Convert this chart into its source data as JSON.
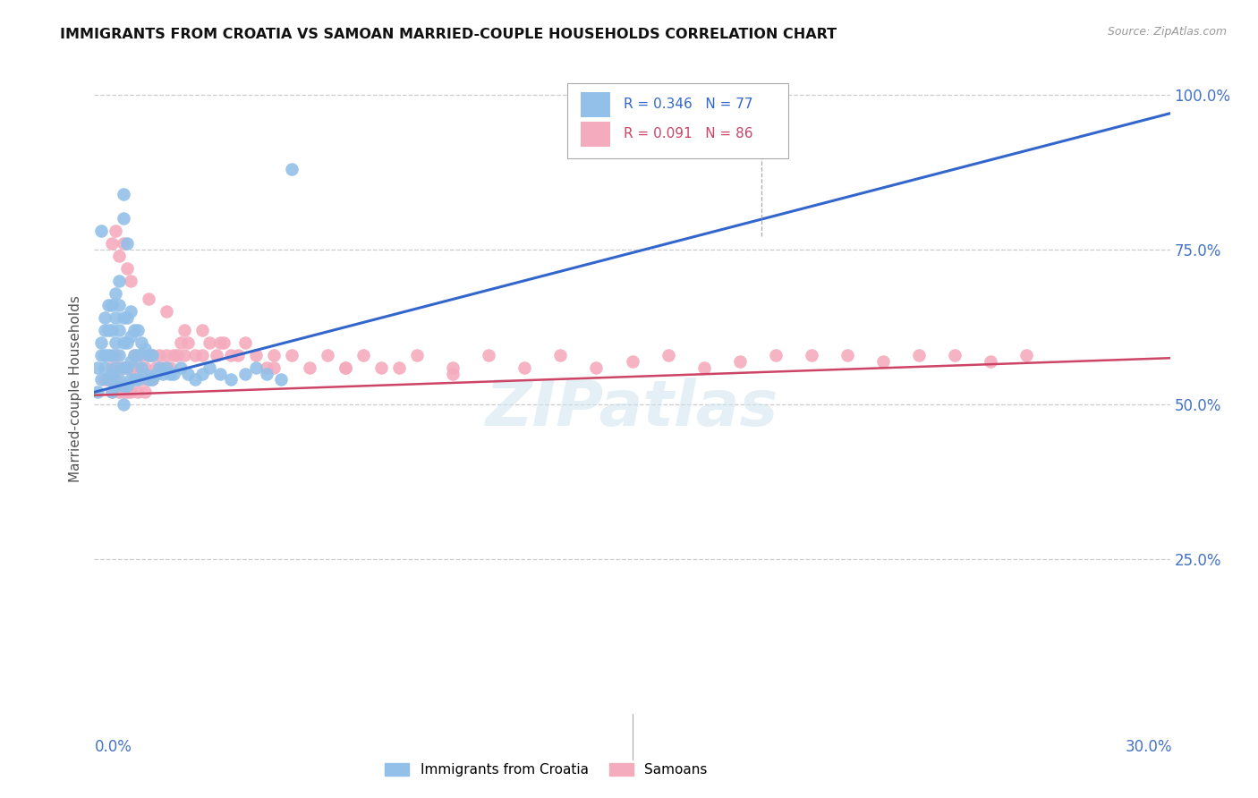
{
  "title": "IMMIGRANTS FROM CROATIA VS SAMOAN MARRIED-COUPLE HOUSEHOLDS CORRELATION CHART",
  "source": "Source: ZipAtlas.com",
  "ylabel": "Married-couple Households",
  "legend_blue": {
    "R": 0.346,
    "N": 77,
    "label": "Immigrants from Croatia"
  },
  "legend_pink": {
    "R": 0.091,
    "N": 86,
    "label": "Samoans"
  },
  "blue_color": "#92C0E8",
  "pink_color": "#F5ABBE",
  "blue_line_color": "#3366CC",
  "pink_line_color": "#CC4466",
  "xlim": [
    0.0,
    0.3
  ],
  "ylim": [
    0.0,
    1.05
  ],
  "blue_x": [
    0.001,
    0.001,
    0.002,
    0.002,
    0.002,
    0.003,
    0.003,
    0.003,
    0.003,
    0.004,
    0.004,
    0.004,
    0.004,
    0.005,
    0.005,
    0.005,
    0.005,
    0.005,
    0.006,
    0.006,
    0.006,
    0.006,
    0.006,
    0.007,
    0.007,
    0.007,
    0.007,
    0.007,
    0.008,
    0.008,
    0.008,
    0.008,
    0.008,
    0.009,
    0.009,
    0.009,
    0.009,
    0.01,
    0.01,
    0.01,
    0.01,
    0.011,
    0.011,
    0.011,
    0.012,
    0.012,
    0.012,
    0.013,
    0.013,
    0.014,
    0.014,
    0.015,
    0.015,
    0.016,
    0.016,
    0.017,
    0.018,
    0.019,
    0.02,
    0.021,
    0.022,
    0.024,
    0.026,
    0.028,
    0.03,
    0.032,
    0.035,
    0.038,
    0.042,
    0.045,
    0.048,
    0.052,
    0.002,
    0.008,
    0.008,
    0.009,
    0.055
  ],
  "blue_y": [
    0.52,
    0.56,
    0.54,
    0.58,
    0.6,
    0.56,
    0.58,
    0.62,
    0.64,
    0.54,
    0.58,
    0.62,
    0.66,
    0.52,
    0.55,
    0.58,
    0.62,
    0.66,
    0.53,
    0.56,
    0.6,
    0.64,
    0.68,
    0.54,
    0.58,
    0.62,
    0.66,
    0.7,
    0.53,
    0.56,
    0.6,
    0.64,
    0.5,
    0.53,
    0.56,
    0.6,
    0.64,
    0.54,
    0.57,
    0.61,
    0.65,
    0.54,
    0.58,
    0.62,
    0.54,
    0.58,
    0.62,
    0.56,
    0.6,
    0.55,
    0.59,
    0.54,
    0.58,
    0.54,
    0.58,
    0.55,
    0.56,
    0.55,
    0.56,
    0.55,
    0.55,
    0.56,
    0.55,
    0.54,
    0.55,
    0.56,
    0.55,
    0.54,
    0.55,
    0.56,
    0.55,
    0.54,
    0.78,
    0.8,
    0.84,
    0.76,
    0.88
  ],
  "pink_x": [
    0.003,
    0.004,
    0.005,
    0.005,
    0.006,
    0.006,
    0.007,
    0.007,
    0.008,
    0.008,
    0.009,
    0.009,
    0.01,
    0.01,
    0.011,
    0.011,
    0.012,
    0.012,
    0.013,
    0.013,
    0.014,
    0.014,
    0.015,
    0.015,
    0.016,
    0.016,
    0.017,
    0.018,
    0.019,
    0.02,
    0.021,
    0.022,
    0.023,
    0.024,
    0.025,
    0.026,
    0.028,
    0.03,
    0.032,
    0.034,
    0.036,
    0.038,
    0.04,
    0.042,
    0.045,
    0.048,
    0.05,
    0.055,
    0.06,
    0.065,
    0.07,
    0.075,
    0.08,
    0.085,
    0.09,
    0.1,
    0.11,
    0.12,
    0.13,
    0.14,
    0.15,
    0.16,
    0.17,
    0.18,
    0.19,
    0.2,
    0.21,
    0.22,
    0.23,
    0.24,
    0.25,
    0.26,
    0.005,
    0.006,
    0.007,
    0.008,
    0.009,
    0.01,
    0.015,
    0.02,
    0.025,
    0.03,
    0.035,
    0.05,
    0.07,
    0.1
  ],
  "pink_y": [
    0.54,
    0.54,
    0.52,
    0.56,
    0.54,
    0.58,
    0.52,
    0.56,
    0.52,
    0.56,
    0.52,
    0.56,
    0.52,
    0.56,
    0.54,
    0.58,
    0.52,
    0.56,
    0.54,
    0.58,
    0.52,
    0.56,
    0.54,
    0.58,
    0.54,
    0.58,
    0.56,
    0.58,
    0.56,
    0.58,
    0.56,
    0.58,
    0.58,
    0.6,
    0.58,
    0.6,
    0.58,
    0.58,
    0.6,
    0.58,
    0.6,
    0.58,
    0.58,
    0.6,
    0.58,
    0.56,
    0.58,
    0.58,
    0.56,
    0.58,
    0.56,
    0.58,
    0.56,
    0.56,
    0.58,
    0.56,
    0.58,
    0.56,
    0.58,
    0.56,
    0.57,
    0.58,
    0.56,
    0.57,
    0.58,
    0.58,
    0.58,
    0.57,
    0.58,
    0.58,
    0.57,
    0.58,
    0.76,
    0.78,
    0.74,
    0.76,
    0.72,
    0.7,
    0.67,
    0.65,
    0.62,
    0.62,
    0.6,
    0.56,
    0.56,
    0.55
  ],
  "blue_trend": [
    0.52,
    0.97
  ],
  "pink_trend": [
    0.515,
    0.575
  ],
  "blue_trend_x": [
    0.0,
    0.3
  ],
  "pink_trend_x": [
    0.0,
    0.3
  ]
}
